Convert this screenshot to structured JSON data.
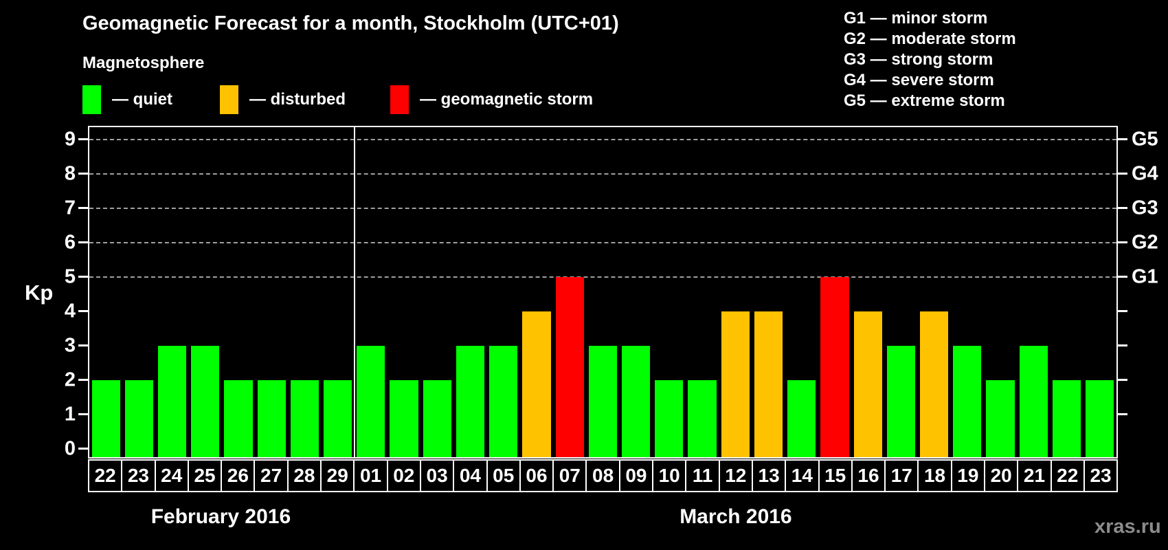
{
  "header": {
    "title": "Geomagnetic Forecast for a month, Stockholm (UTC+01)",
    "subtitle": "Magnetosphere",
    "bar_legend": [
      {
        "id": "quiet",
        "swatch_color": "#00ff00",
        "label": "— quiet"
      },
      {
        "id": "disturbed",
        "swatch_color": "#ffc200",
        "label": "— disturbed"
      },
      {
        "id": "storm",
        "swatch_color": "#ff0000",
        "label": "— geomagnetic storm"
      }
    ],
    "g_scale_legend": [
      "G1 — minor storm",
      "G2 — moderate storm",
      "G3 — strong storm",
      "G4 — severe storm",
      "G5 — extreme storm"
    ]
  },
  "watermark": "xras.ru",
  "chart_data": {
    "type": "bar",
    "title": "Geomagnetic Forecast for a month, Stockholm (UTC+01)",
    "y_axis_label": "Kp",
    "ylim": [
      0,
      9.4
    ],
    "grid": "dashed horizontal lines at Kp 5-9 only",
    "legend_position": "top",
    "y_ticks_left": [
      0,
      1,
      2,
      3,
      4,
      5,
      6,
      7,
      8,
      9
    ],
    "y_ticks_right_unlabeled": [
      1,
      2,
      3,
      4
    ],
    "g_levels": [
      {
        "kp": 5,
        "label": "G1"
      },
      {
        "kp": 6,
        "label": "G2"
      },
      {
        "kp": 7,
        "label": "G3"
      },
      {
        "kp": 8,
        "label": "G4"
      },
      {
        "kp": 9,
        "label": "G5"
      }
    ],
    "status_colors": {
      "quiet": "#00ff00",
      "disturbed": "#ffc200",
      "storm": "#ff0000"
    },
    "months": [
      {
        "label": "February 2016",
        "days": 8
      },
      {
        "label": "March 2016",
        "days": 23
      }
    ],
    "bars": [
      {
        "day": "22",
        "kp": 2,
        "status": "quiet"
      },
      {
        "day": "23",
        "kp": 2,
        "status": "quiet"
      },
      {
        "day": "24",
        "kp": 3,
        "status": "quiet"
      },
      {
        "day": "25",
        "kp": 3,
        "status": "quiet"
      },
      {
        "day": "26",
        "kp": 2,
        "status": "quiet"
      },
      {
        "day": "27",
        "kp": 2,
        "status": "quiet"
      },
      {
        "day": "28",
        "kp": 2,
        "status": "quiet"
      },
      {
        "day": "29",
        "kp": 2,
        "status": "quiet"
      },
      {
        "day": "01",
        "kp": 3,
        "status": "quiet"
      },
      {
        "day": "02",
        "kp": 2,
        "status": "quiet"
      },
      {
        "day": "03",
        "kp": 2,
        "status": "quiet"
      },
      {
        "day": "04",
        "kp": 3,
        "status": "quiet"
      },
      {
        "day": "05",
        "kp": 3,
        "status": "quiet"
      },
      {
        "day": "06",
        "kp": 4,
        "status": "disturbed"
      },
      {
        "day": "07",
        "kp": 5,
        "status": "storm"
      },
      {
        "day": "08",
        "kp": 3,
        "status": "quiet"
      },
      {
        "day": "09",
        "kp": 3,
        "status": "quiet"
      },
      {
        "day": "10",
        "kp": 2,
        "status": "quiet"
      },
      {
        "day": "11",
        "kp": 2,
        "status": "quiet"
      },
      {
        "day": "12",
        "kp": 4,
        "status": "disturbed"
      },
      {
        "day": "13",
        "kp": 4,
        "status": "disturbed"
      },
      {
        "day": "14",
        "kp": 2,
        "status": "quiet"
      },
      {
        "day": "15",
        "kp": 5,
        "status": "storm"
      },
      {
        "day": "16",
        "kp": 4,
        "status": "disturbed"
      },
      {
        "day": "17",
        "kp": 3,
        "status": "quiet"
      },
      {
        "day": "18",
        "kp": 4,
        "status": "disturbed"
      },
      {
        "day": "19",
        "kp": 3,
        "status": "quiet"
      },
      {
        "day": "20",
        "kp": 2,
        "status": "quiet"
      },
      {
        "day": "21",
        "kp": 3,
        "status": "quiet"
      },
      {
        "day": "22",
        "kp": 2,
        "status": "quiet"
      },
      {
        "day": "23",
        "kp": 2,
        "status": "quiet"
      }
    ]
  }
}
